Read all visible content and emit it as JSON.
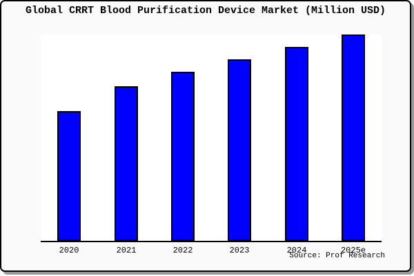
{
  "header": {
    "title": "Global CRRT Blood Purification Device Market (Million USD)"
  },
  "footer": {
    "source": "Source: Prof Research"
  },
  "colors": {
    "page_bg": "#ffffff",
    "panel_bg": "#fafafa",
    "panel_border": "#000000",
    "panel_shadow": "#999999",
    "plot_bg": "#ffffff",
    "axis": "#000000",
    "bar_fill": "#0000ff",
    "bar_border": "#000000",
    "text": "#000000"
  },
  "chart_data": {
    "type": "bar",
    "title": "Global CRRT Blood Purification Device Market (Million USD)",
    "unit": "Million USD",
    "categories": [
      "2020",
      "2021",
      "2022",
      "2023",
      "2024",
      "2025e"
    ],
    "values": [
      63,
      75,
      82,
      88,
      94,
      100
    ],
    "value_note": "y-axis has no tick labels; values are relative bar heights as percent of tallest bar (2025e = 100)",
    "xlabel": "",
    "ylabel": "",
    "ylim": [
      0,
      100
    ],
    "grid": false,
    "y_axis_visible": false,
    "legend": null
  }
}
